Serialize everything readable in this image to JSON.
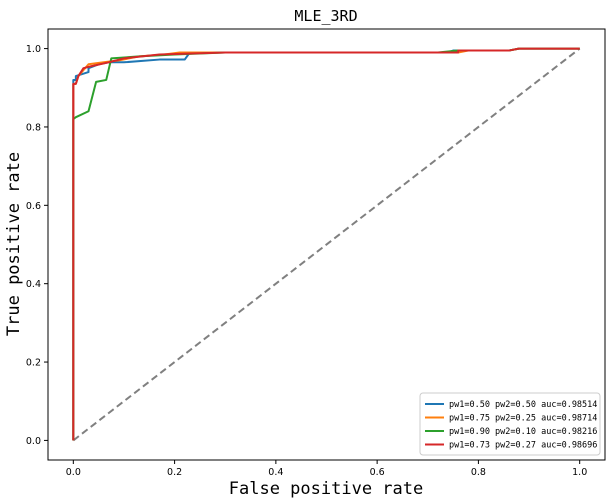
{
  "chart_data": {
    "type": "line",
    "title": "MLE_3RD",
    "xlabel": "False positive rate",
    "ylabel": "True positive rate",
    "xlim": [
      -0.05,
      1.05
    ],
    "ylim": [
      -0.05,
      1.05
    ],
    "xticks": [
      0.0,
      0.2,
      0.4,
      0.6,
      0.8,
      1.0
    ],
    "yticks": [
      0.0,
      0.2,
      0.4,
      0.6,
      0.8,
      1.0
    ],
    "xtick_labels": [
      "0.0",
      "0.2",
      "0.4",
      "0.6",
      "0.8",
      "1.0"
    ],
    "ytick_labels": [
      "0.0",
      "0.2",
      "0.4",
      "0.6",
      "0.8",
      "1.0"
    ],
    "grid": false,
    "legend_position": "lower-right",
    "series": [
      {
        "name": "pw1=0.50 pw2=0.50 auc=0.98514",
        "color": "#1f77b4",
        "x": [
          0,
          0,
          0.005,
          0.005,
          0.03,
          0.03,
          0.05,
          0.07,
          0.1,
          0.17,
          0.22,
          0.23,
          0.23,
          0.4,
          0.74,
          0.75,
          0.86,
          0.88,
          1.0
        ],
        "y": [
          0,
          0.92,
          0.92,
          0.93,
          0.94,
          0.95,
          0.96,
          0.965,
          0.965,
          0.972,
          0.972,
          0.99,
          0.99,
          0.99,
          0.99,
          0.995,
          0.995,
          1.0,
          1.0
        ]
      },
      {
        "name": "pw1=0.75 pw2=0.25 auc=0.98714",
        "color": "#ff7f0e",
        "x": [
          0,
          0,
          0.005,
          0.01,
          0.02,
          0.03,
          0.06,
          0.09,
          0.13,
          0.18,
          0.21,
          0.6,
          0.76,
          0.78,
          0.86,
          0.88,
          1.0
        ],
        "y": [
          0,
          0.91,
          0.91,
          0.93,
          0.945,
          0.96,
          0.965,
          0.97,
          0.98,
          0.985,
          0.99,
          0.99,
          0.99,
          0.995,
          0.995,
          1.0,
          1.0
        ]
      },
      {
        "name": "pw1=0.90 pw2=0.10 auc=0.98216",
        "color": "#2ca02c",
        "x": [
          0,
          0,
          0.005,
          0.03,
          0.045,
          0.065,
          0.075,
          0.13,
          0.2,
          0.3,
          0.72,
          0.76,
          0.86,
          0.88,
          1.0
        ],
        "y": [
          0,
          0.82,
          0.825,
          0.84,
          0.915,
          0.92,
          0.975,
          0.98,
          0.985,
          0.99,
          0.99,
          0.995,
          0.995,
          1.0,
          1.0
        ]
      },
      {
        "name": "pw1=0.73 pw2=0.27 auc=0.98696",
        "color": "#d62728",
        "x": [
          0,
          0,
          0.005,
          0.01,
          0.02,
          0.035,
          0.07,
          0.1,
          0.17,
          0.3,
          0.76,
          0.76,
          0.86,
          0.88,
          1.0
        ],
        "y": [
          0,
          0.91,
          0.91,
          0.93,
          0.95,
          0.955,
          0.965,
          0.975,
          0.985,
          0.99,
          0.99,
          0.995,
          0.995,
          1.0,
          1.0
        ]
      }
    ],
    "reference_line": {
      "x": [
        0,
        1
      ],
      "y": [
        0,
        1
      ],
      "color": "#808080",
      "style": "dashed"
    }
  }
}
